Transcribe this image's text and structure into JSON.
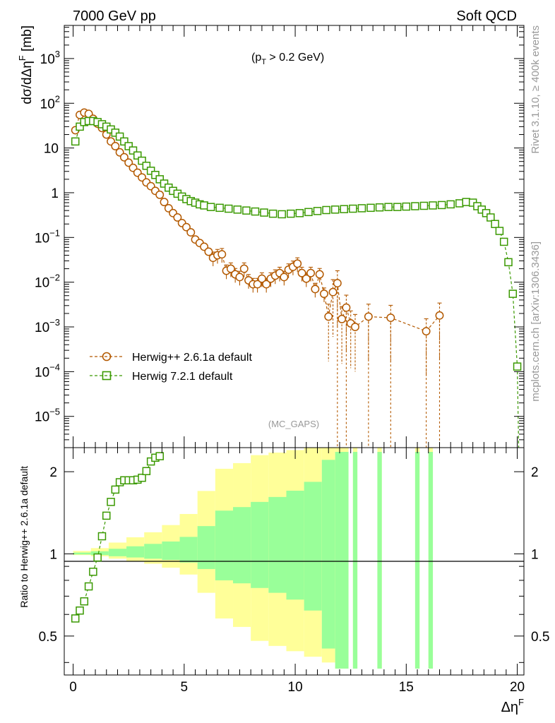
{
  "header": {
    "left": "7000 GeV pp",
    "right": "Soft QCD"
  },
  "annotations": {
    "cut": "(p",
    "cut_sub": "T",
    "cut_rest": " > 0.2 GeV)",
    "analysis": "(MC_GAPS)",
    "rivet": "Rivet 3.1.10, ≥ 400k events",
    "mcplots": "mcplots.cern.ch [arXiv:1306.3436]"
  },
  "legend": {
    "items": [
      {
        "label": "Herwig++ 2.6.1a default",
        "color": "#b35900",
        "marker": "circle"
      },
      {
        "label": "Herwig 7.2.1 default",
        "color": "#3a9900",
        "marker": "square"
      }
    ]
  },
  "axes": {
    "ylabel_top": "dσ/dΔη",
    "ylabel_top_sup": "F",
    "ylabel_top_unit": " [mb]",
    "ylabel_bottom": "Ratio to Herwig++ 2.6.1a default",
    "xlabel": "Δη",
    "xlabel_sup": "F",
    "xticks": [
      "0",
      "5",
      "10",
      "15",
      "20"
    ],
    "yticks_top": [
      {
        "base": "10",
        "exp": "−5"
      },
      {
        "base": "10",
        "exp": "−4"
      },
      {
        "base": "10",
        "exp": "−3"
      },
      {
        "base": "10",
        "exp": "−2"
      },
      {
        "base": "10",
        "exp": "−1"
      },
      {
        "base": "1",
        "exp": ""
      },
      {
        "base": "10",
        "exp": ""
      },
      {
        "base": "10",
        "exp": "2"
      },
      {
        "base": "10",
        "exp": "3"
      }
    ],
    "yticks_bottom": [
      "0.5",
      "1",
      "2"
    ]
  },
  "chart_data": {
    "type": "scatter",
    "xlim": [
      -0.4,
      20.3
    ],
    "top": {
      "yscale": "log",
      "ylim": [
        2e-06,
        5500
      ],
      "series": [
        {
          "name": "Herwig++ 2.6.1a default",
          "color": "#b35900",
          "marker": "circle",
          "points": [
            [
              0.1,
              25
            ],
            [
              0.3,
              55
            ],
            [
              0.5,
              62
            ],
            [
              0.7,
              58
            ],
            [
              0.9,
              45
            ],
            [
              1.1,
              35
            ],
            [
              1.3,
              28
            ],
            [
              1.5,
              20
            ],
            [
              1.7,
              14
            ],
            [
              1.9,
              11
            ],
            [
              2.1,
              8
            ],
            [
              2.3,
              6.2
            ],
            [
              2.5,
              4.7
            ],
            [
              2.7,
              3.6
            ],
            [
              2.9,
              2.8
            ],
            [
              3.1,
              2.2
            ],
            [
              3.3,
              1.7
            ],
            [
              3.5,
              1.4
            ],
            [
              3.7,
              1.1
            ],
            [
              3.9,
              0.9
            ],
            [
              4.1,
              0.62
            ],
            [
              4.3,
              0.45
            ],
            [
              4.5,
              0.35
            ],
            [
              4.7,
              0.28
            ],
            [
              4.9,
              0.21
            ],
            [
              5.1,
              0.17
            ],
            [
              5.3,
              0.13
            ],
            [
              5.5,
              0.09
            ],
            [
              5.7,
              0.075
            ],
            [
              5.9,
              0.062
            ],
            [
              6.1,
              0.048
            ],
            [
              6.3,
              0.035
            ],
            [
              6.5,
              0.04
            ],
            [
              6.7,
              0.042
            ],
            [
              6.9,
              0.018
            ],
            [
              7.1,
              0.02
            ],
            [
              7.3,
              0.015
            ],
            [
              7.5,
              0.013
            ],
            [
              7.7,
              0.02
            ],
            [
              7.9,
              0.011
            ],
            [
              8.1,
              0.009
            ],
            [
              8.3,
              0.009
            ],
            [
              8.5,
              0.012
            ],
            [
              8.7,
              0.009
            ],
            [
              8.9,
              0.012
            ],
            [
              9.1,
              0.014
            ],
            [
              9.3,
              0.016
            ],
            [
              9.5,
              0.013
            ],
            [
              9.7,
              0.019
            ],
            [
              9.9,
              0.022
            ],
            [
              10.1,
              0.026
            ],
            [
              10.3,
              0.016
            ],
            [
              10.5,
              0.012
            ],
            [
              10.7,
              0.016
            ],
            [
              10.9,
              0.007
            ],
            [
              11.1,
              0.015
            ],
            [
              11.3,
              0.0055
            ],
            [
              11.5,
              0.0017
            ],
            [
              11.7,
              0.006
            ],
            [
              11.9,
              0.0095
            ],
            [
              12.1,
              0.0015
            ],
            [
              12.3,
              0.0027
            ],
            [
              12.5,
              0.0012
            ],
            [
              12.7,
              0.001
            ],
            [
              13.3,
              0.0017
            ],
            [
              14.3,
              0.0016
            ],
            [
              15.9,
              0.0008
            ],
            [
              16.5,
              0.0018
            ]
          ]
        },
        {
          "name": "Herwig 7.2.1 default",
          "color": "#3a9900",
          "marker": "square",
          "points": [
            [
              0.1,
              14
            ],
            [
              0.3,
              30
            ],
            [
              0.5,
              38
            ],
            [
              0.7,
              40
            ],
            [
              0.9,
              40
            ],
            [
              1.1,
              38
            ],
            [
              1.3,
              34
            ],
            [
              1.5,
              30
            ],
            [
              1.7,
              26
            ],
            [
              1.9,
              22
            ],
            [
              2.1,
              18
            ],
            [
              2.3,
              14
            ],
            [
              2.5,
              11
            ],
            [
              2.7,
              8.8
            ],
            [
              2.9,
              6.8
            ],
            [
              3.1,
              5.2
            ],
            [
              3.3,
              4
            ],
            [
              3.5,
              3.1
            ],
            [
              3.7,
              2.5
            ],
            [
              3.9,
              2
            ],
            [
              4.1,
              1.6
            ],
            [
              4.3,
              1.3
            ],
            [
              4.5,
              1.1
            ],
            [
              4.7,
              0.95
            ],
            [
              4.9,
              0.82
            ],
            [
              5.1,
              0.72
            ],
            [
              5.3,
              0.65
            ],
            [
              5.5,
              0.6
            ],
            [
              5.7,
              0.55
            ],
            [
              5.9,
              0.52
            ],
            [
              6.2,
              0.48
            ],
            [
              6.6,
              0.46
            ],
            [
              7,
              0.44
            ],
            [
              7.4,
              0.42
            ],
            [
              7.8,
              0.4
            ],
            [
              8.2,
              0.38
            ],
            [
              8.6,
              0.36
            ],
            [
              9,
              0.34
            ],
            [
              9.4,
              0.33
            ],
            [
              9.8,
              0.34
            ],
            [
              10.2,
              0.35
            ],
            [
              10.6,
              0.37
            ],
            [
              11,
              0.39
            ],
            [
              11.4,
              0.41
            ],
            [
              11.8,
              0.42
            ],
            [
              12.2,
              0.43
            ],
            [
              12.6,
              0.44
            ],
            [
              13,
              0.45
            ],
            [
              13.4,
              0.46
            ],
            [
              13.8,
              0.47
            ],
            [
              14.2,
              0.48
            ],
            [
              14.6,
              0.48
            ],
            [
              15,
              0.49
            ],
            [
              15.4,
              0.5
            ],
            [
              15.8,
              0.51
            ],
            [
              16.2,
              0.52
            ],
            [
              16.6,
              0.53
            ],
            [
              17,
              0.55
            ],
            [
              17.4,
              0.58
            ],
            [
              17.7,
              0.62
            ],
            [
              18,
              0.6
            ],
            [
              18.2,
              0.5
            ],
            [
              18.4,
              0.42
            ],
            [
              18.6,
              0.35
            ],
            [
              18.8,
              0.28
            ],
            [
              19,
              0.2
            ],
            [
              19.2,
              0.14
            ],
            [
              19.4,
              0.08
            ],
            [
              19.6,
              0.028
            ],
            [
              19.8,
              0.0055
            ],
            [
              20,
              0.00013
            ]
          ]
        }
      ]
    },
    "ratio": {
      "yscale": "log",
      "ylim": [
        0.36,
        2.45
      ],
      "reference": 1,
      "band_color_inner": "#99ff99",
      "band_color_outer": "#ffff99",
      "ratio_points": [
        [
          0.1,
          0.58
        ],
        [
          0.3,
          0.62
        ],
        [
          0.5,
          0.67
        ],
        [
          0.7,
          0.76
        ],
        [
          0.9,
          0.86
        ],
        [
          1.1,
          0.97
        ],
        [
          1.3,
          1.16
        ],
        [
          1.5,
          1.38
        ],
        [
          1.7,
          1.55
        ],
        [
          1.9,
          1.72
        ],
        [
          2.1,
          1.83
        ],
        [
          2.3,
          1.86
        ],
        [
          2.5,
          1.86
        ],
        [
          2.7,
          1.86
        ],
        [
          2.9,
          1.87
        ],
        [
          3.1,
          1.9
        ],
        [
          3.3,
          2.01
        ],
        [
          3.5,
          2.18
        ],
        [
          3.7,
          2.25
        ],
        [
          3.9,
          2.28
        ]
      ],
      "band_bins": [
        {
          "x0": 0,
          "x1": 0.8,
          "in": 0.005,
          "out": 0.01
        },
        {
          "x0": 0.8,
          "x1": 1.6,
          "in": 0.01,
          "out": 0.02
        },
        {
          "x0": 1.6,
          "x1": 2.4,
          "in": 0.02,
          "out": 0.04
        },
        {
          "x0": 2.4,
          "x1": 3.2,
          "in": 0.03,
          "out": 0.06
        },
        {
          "x0": 3.2,
          "x1": 4.0,
          "in": 0.04,
          "out": 0.08
        },
        {
          "x0": 4.0,
          "x1": 4.8,
          "in": 0.05,
          "out": 0.11
        },
        {
          "x0": 4.8,
          "x1": 5.6,
          "in": 0.07,
          "out": 0.16
        },
        {
          "x0": 5.6,
          "x1": 6.4,
          "in": 0.12,
          "out": 0.28
        },
        {
          "x0": 6.4,
          "x1": 7.2,
          "in": 0.2,
          "out": 0.42
        },
        {
          "x0": 7.2,
          "x1": 8.0,
          "in": 0.22,
          "out": 0.46
        },
        {
          "x0": 8.0,
          "x1": 8.8,
          "in": 0.25,
          "out": 0.52
        },
        {
          "x0": 8.8,
          "x1": 9.6,
          "in": 0.28,
          "out": 0.54
        },
        {
          "x0": 9.6,
          "x1": 10.4,
          "in": 0.32,
          "out": 0.56
        },
        {
          "x0": 10.4,
          "x1": 11.2,
          "in": 0.38,
          "out": 0.58
        },
        {
          "x0": 11.2,
          "x1": 11.8,
          "in": 0.55,
          "out": 0.6
        },
        {
          "x0": 11.8,
          "x1": 12.4,
          "in": 0.62,
          "out": 0.62
        },
        {
          "x0": 12.6,
          "x1": 12.8,
          "in": 0.62,
          "out": 0.62
        },
        {
          "x0": 13.7,
          "x1": 13.9,
          "in": 0.62,
          "out": 0.62
        },
        {
          "x0": 15.4,
          "x1": 15.6,
          "in": 0.62,
          "out": 0.62
        },
        {
          "x0": 16.0,
          "x1": 16.2,
          "in": 0.62,
          "out": 0.62
        }
      ]
    }
  }
}
